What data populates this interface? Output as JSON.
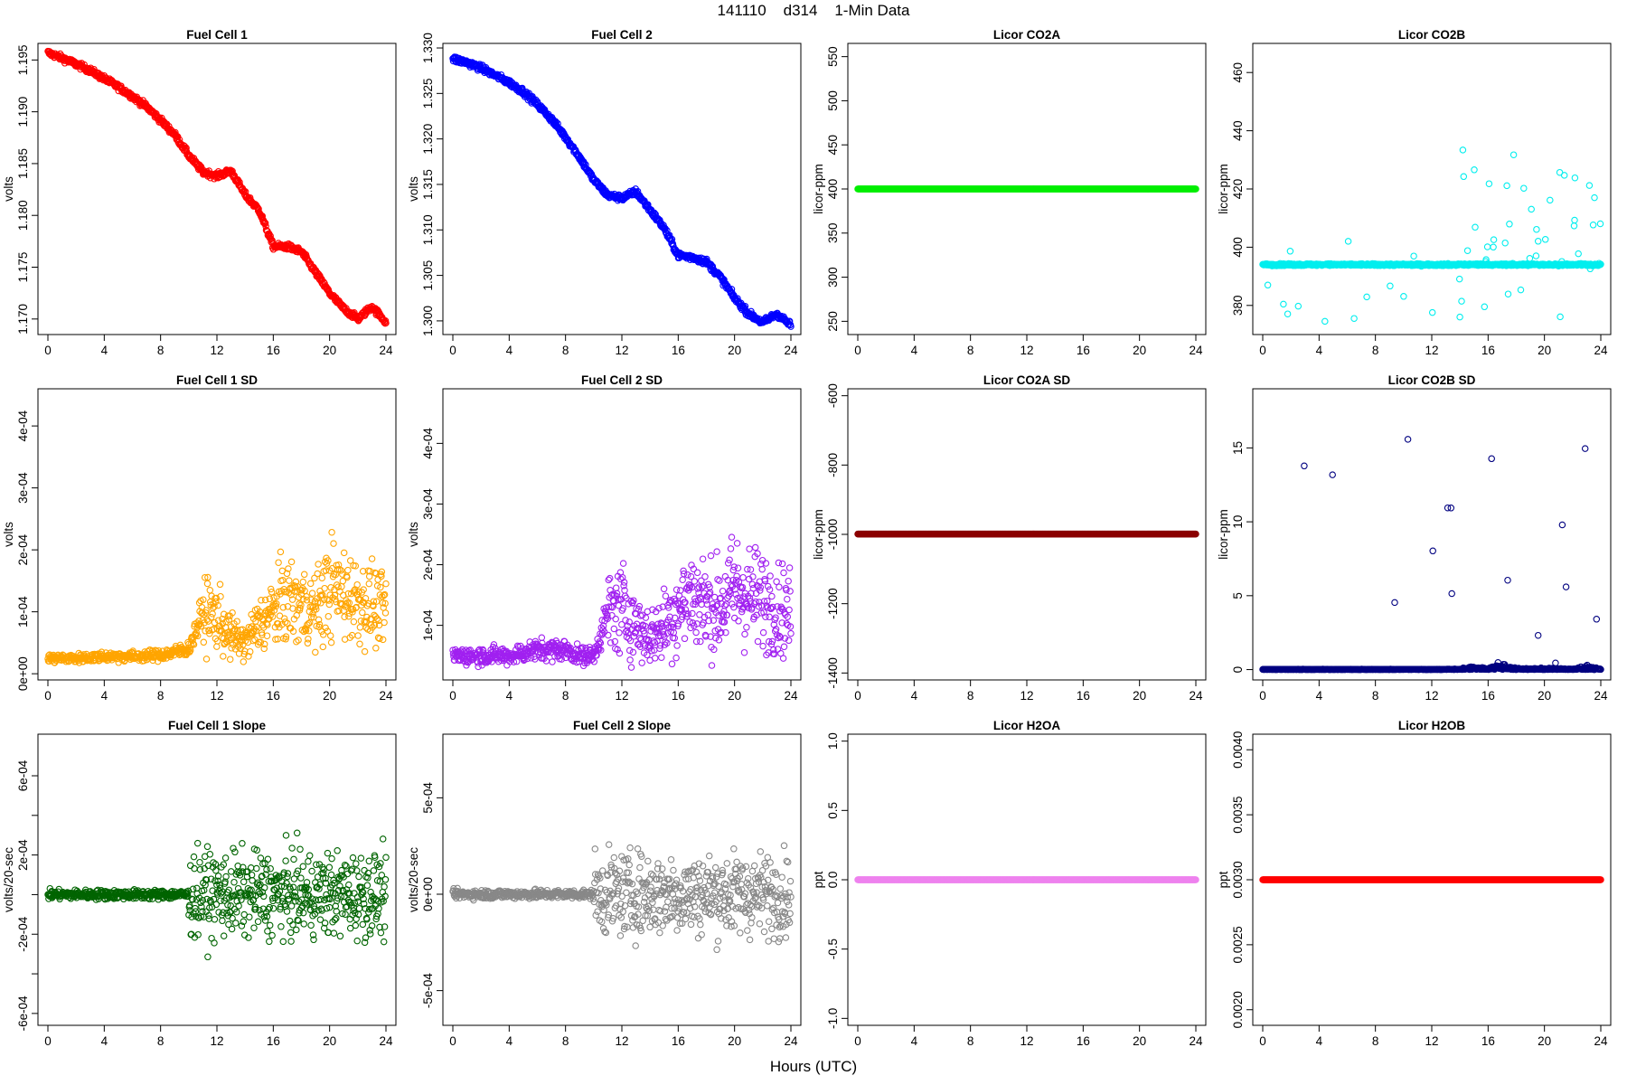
{
  "figure": {
    "title": "141110    d314    1-Min Data",
    "xlabel": "Hours (UTC)"
  },
  "chart_data": [
    {
      "id": "fc1",
      "type": "scatter",
      "title": "Fuel Cell 1",
      "ylabel": "volts",
      "color": "#ff0000",
      "xlim": [
        0,
        24
      ],
      "xticks": [
        0,
        4,
        8,
        12,
        16,
        20,
        24
      ],
      "ylim": [
        1.1685,
        1.1966
      ],
      "yticks": [
        1.17,
        1.175,
        1.18,
        1.185,
        1.19,
        1.195
      ],
      "ytick_labels": [
        "1.170",
        "1.175",
        "1.180",
        "1.185",
        "1.190",
        "1.195"
      ],
      "x": [
        0,
        1,
        2,
        3,
        4,
        5,
        6,
        7,
        8,
        9,
        10,
        11,
        12,
        13,
        14,
        15,
        16,
        17,
        18,
        19,
        20,
        21,
        22,
        23,
        24
      ],
      "y": [
        1.1957,
        1.1952,
        1.1946,
        1.194,
        1.1932,
        1.1924,
        1.1915,
        1.1905,
        1.1892,
        1.1878,
        1.1858,
        1.1842,
        1.1838,
        1.1843,
        1.182,
        1.1805,
        1.177,
        1.177,
        1.1765,
        1.1745,
        1.1725,
        1.171,
        1.17,
        1.1712,
        1.1697
      ]
    },
    {
      "id": "fc2",
      "type": "scatter",
      "title": "Fuel Cell 2",
      "ylabel": "volts",
      "color": "#0000ff",
      "xlim": [
        0,
        24
      ],
      "xticks": [
        0,
        4,
        8,
        12,
        16,
        20,
        24
      ],
      "ylim": [
        1.2985,
        1.3305
      ],
      "yticks": [
        1.3,
        1.305,
        1.31,
        1.315,
        1.32,
        1.325,
        1.33
      ],
      "ytick_labels": [
        "1.300",
        "1.305",
        "1.310",
        "1.315",
        "1.320",
        "1.325",
        "1.330"
      ],
      "x": [
        0,
        1,
        2,
        3,
        4,
        5,
        6,
        7,
        8,
        9,
        10,
        11,
        12,
        13,
        14,
        15,
        16,
        17,
        18,
        19,
        20,
        21,
        22,
        23,
        24
      ],
      "y": [
        1.3288,
        1.3284,
        1.3278,
        1.327,
        1.3262,
        1.3252,
        1.3238,
        1.3222,
        1.3202,
        1.318,
        1.3155,
        1.3138,
        1.3135,
        1.3142,
        1.3122,
        1.3102,
        1.3072,
        1.307,
        1.3065,
        1.3048,
        1.3025,
        1.3008,
        1.2998,
        1.3008,
        1.2995
      ]
    },
    {
      "id": "co2a",
      "type": "scatter",
      "title": "Licor CO2A",
      "ylabel": "licor-ppm",
      "color": "#00ee00",
      "xlim": [
        0,
        24
      ],
      "xticks": [
        0,
        4,
        8,
        12,
        16,
        20,
        24
      ],
      "ylim": [
        235,
        565
      ],
      "yticks": [
        250,
        300,
        350,
        400,
        450,
        500,
        550
      ],
      "ytick_labels": [
        "250",
        "300",
        "350",
        "400",
        "450",
        "500",
        "550"
      ],
      "x": [
        0,
        24
      ],
      "y": [
        400,
        400
      ]
    },
    {
      "id": "co2b",
      "type": "scatter",
      "title": "Licor CO2B",
      "ylabel": "licor-ppm",
      "color": "#00eeee",
      "xlim": [
        0,
        24
      ],
      "xticks": [
        0,
        4,
        8,
        12,
        16,
        20,
        24
      ],
      "ylim": [
        370,
        470
      ],
      "yticks": [
        380,
        400,
        420,
        440,
        460
      ],
      "ytick_labels": [
        "380",
        "400",
        "420",
        "440",
        "460"
      ],
      "x": [
        0,
        1,
        2,
        3,
        4,
        5,
        6,
        7,
        8,
        9,
        10,
        11,
        12,
        13,
        14,
        15,
        16,
        17,
        18,
        19,
        20,
        21,
        22,
        23,
        24
      ],
      "y": [
        394,
        394,
        394,
        394,
        394,
        394,
        394,
        394,
        394,
        394,
        394,
        394,
        394,
        394,
        394,
        394,
        394,
        394,
        394,
        394,
        394,
        394,
        394,
        394,
        394
      ]
    },
    {
      "id": "fc1sd",
      "type": "scatter",
      "title": "Fuel Cell 1 SD",
      "ylabel": "volts",
      "color": "#ffa500",
      "xlim": [
        0,
        24
      ],
      "xticks": [
        0,
        4,
        8,
        12,
        16,
        20,
        24
      ],
      "ylim": [
        -1e-05,
        0.00046
      ],
      "yticks": [
        0,
        0.0001,
        0.0002,
        0.0003,
        0.0004
      ],
      "ytick_labels": [
        "0e+00",
        "1e-04",
        "2e-04",
        "3e-04",
        "4e-04"
      ],
      "x": [
        0,
        2,
        4,
        6,
        8,
        9,
        10,
        11,
        12,
        13,
        14,
        15,
        16,
        17,
        18,
        19,
        20,
        21,
        22,
        23,
        24
      ],
      "y": [
        2.5e-05,
        2.5e-05,
        2.8e-05,
        2.8e-05,
        3e-05,
        3.5e-05,
        4e-05,
        0.0001,
        9e-05,
        6e-05,
        5e-05,
        8e-05,
        0.0001,
        0.00012,
        0.00011,
        0.0001,
        0.00014,
        0.00013,
        0.00012,
        0.00011,
        0.0001
      ]
    },
    {
      "id": "fc2sd",
      "type": "scatter",
      "title": "Fuel Cell 2 SD",
      "ylabel": "volts",
      "color": "#a020f0",
      "xlim": [
        0,
        24
      ],
      "xticks": [
        0,
        4,
        8,
        12,
        16,
        20,
        24
      ],
      "ylim": [
        1e-05,
        0.00049
      ],
      "yticks": [
        0.0001,
        0.0002,
        0.0003,
        0.0004
      ],
      "ytick_labels": [
        "1e-04",
        "2e-04",
        "3e-04",
        "4e-04"
      ],
      "x": [
        0,
        2,
        4,
        6,
        8,
        9,
        10,
        11,
        12,
        13,
        14,
        15,
        16,
        17,
        18,
        19,
        20,
        21,
        22,
        23,
        24
      ],
      "y": [
        5e-05,
        5e-05,
        5e-05,
        6e-05,
        6e-05,
        5e-05,
        5e-05,
        0.00012,
        0.00013,
        0.0001,
        8e-05,
        0.0001,
        0.00013,
        0.00015,
        0.00013,
        0.00013,
        0.00016,
        0.00015,
        0.00014,
        0.00013,
        0.00012
      ]
    },
    {
      "id": "co2asd",
      "type": "scatter",
      "title": "Licor CO2A SD",
      "ylabel": "licor-ppm",
      "color": "#8b0000",
      "xlim": [
        0,
        24
      ],
      "xticks": [
        0,
        4,
        8,
        12,
        16,
        20,
        24
      ],
      "ylim": [
        -1420,
        -580
      ],
      "yticks": [
        -1400,
        -1200,
        -1000,
        -800,
        -600
      ],
      "ytick_labels": [
        "-1400",
        "-1200",
        "-1000",
        "-800",
        "-600"
      ],
      "x": [
        0,
        24
      ],
      "y": [
        -999,
        -999
      ]
    },
    {
      "id": "co2bsd",
      "type": "scatter",
      "title": "Licor CO2B SD",
      "ylabel": "licor-ppm",
      "color": "#000080",
      "xlim": [
        0,
        24
      ],
      "xticks": [
        0,
        4,
        8,
        12,
        16,
        20,
        24
      ],
      "ylim": [
        -0.7,
        19
      ],
      "yticks": [
        0,
        5,
        10,
        15
      ],
      "ytick_labels": [
        "0",
        "5",
        "10",
        "15"
      ],
      "x": [
        0,
        4,
        8,
        12,
        14,
        15,
        16,
        17,
        18,
        19,
        20,
        21,
        22,
        23,
        24
      ],
      "y": [
        0.1,
        0.1,
        0.1,
        0.1,
        0.2,
        1,
        0.3,
        2,
        0.5,
        0.3,
        0.5,
        0.3,
        0.2,
        1,
        0.2
      ]
    },
    {
      "id": "fc1slope",
      "type": "scatter",
      "title": "Fuel Cell 1 Slope",
      "ylabel": "volts/20-sec",
      "color": "#006400",
      "xlim": [
        0,
        24
      ],
      "xticks": [
        0,
        4,
        8,
        12,
        16,
        20,
        24
      ],
      "ylim": [
        -0.00066,
        0.00081
      ],
      "yticks": [
        -0.0006,
        -0.0004,
        -0.0002,
        0,
        0.0002,
        0.0004,
        0.0006
      ],
      "ytick_labels": [
        "-6e-04",
        "",
        "-2e-04",
        "",
        "2e-04",
        "",
        "6e-04"
      ],
      "x": [
        0,
        24
      ],
      "y": [
        0,
        0
      ]
    },
    {
      "id": "fc2slope",
      "type": "scatter",
      "title": "Fuel Cell 2 Slope",
      "ylabel": "volts/20-sec",
      "color": "#888888",
      "xlim": [
        0,
        24
      ],
      "xticks": [
        0,
        4,
        8,
        12,
        16,
        20,
        24
      ],
      "ylim": [
        -0.00068,
        0.00083
      ],
      "yticks": [
        -0.0005,
        0,
        0.0005
      ],
      "ytick_labels": [
        "-5e-04",
        "0e+00",
        "5e-04"
      ],
      "x": [
        0,
        24
      ],
      "y": [
        0,
        0
      ]
    },
    {
      "id": "h2oa",
      "type": "scatter",
      "title": "Licor H2OA",
      "ylabel": "ppt",
      "color": "#ee82ee",
      "xlim": [
        0,
        24
      ],
      "xticks": [
        0,
        4,
        8,
        12,
        16,
        20,
        24
      ],
      "ylim": [
        -1.05,
        1.05
      ],
      "yticks": [
        -1,
        -0.5,
        0,
        0.5,
        1
      ],
      "ytick_labels": [
        "-1.0",
        "-0.5",
        "0.0",
        "0.5",
        "1.0"
      ],
      "x": [
        0,
        24
      ],
      "y": [
        0,
        0
      ]
    },
    {
      "id": "h2ob",
      "type": "scatter",
      "title": "Licor H2OB",
      "ylabel": "ppt",
      "color": "#ff0000",
      "xlim": [
        0,
        24
      ],
      "xticks": [
        0,
        4,
        8,
        12,
        16,
        20,
        24
      ],
      "ylim": [
        0.00188,
        0.00412
      ],
      "yticks": [
        0.002,
        0.0025,
        0.003,
        0.0035,
        0.004
      ],
      "ytick_labels": [
        "0.0020",
        "0.0025",
        "0.0030",
        "0.0035",
        "0.0040"
      ],
      "x": [
        0,
        24
      ],
      "y": [
        0.003,
        0.003
      ]
    }
  ]
}
